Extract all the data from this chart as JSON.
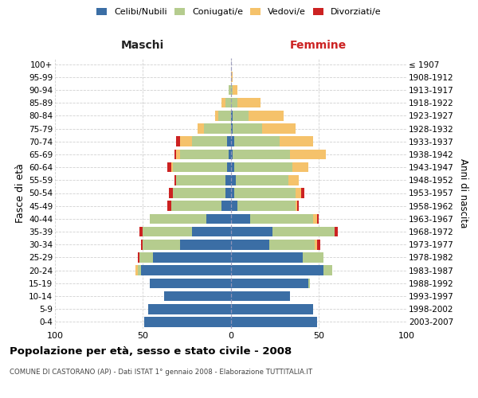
{
  "age_groups": [
    "0-4",
    "5-9",
    "10-14",
    "15-19",
    "20-24",
    "25-29",
    "30-34",
    "35-39",
    "40-44",
    "45-49",
    "50-54",
    "55-59",
    "60-64",
    "65-69",
    "70-74",
    "75-79",
    "80-84",
    "85-89",
    "90-94",
    "95-99",
    "100+"
  ],
  "birth_years": [
    "2003-2007",
    "1998-2002",
    "1993-1997",
    "1988-1992",
    "1983-1987",
    "1978-1982",
    "1973-1977",
    "1968-1972",
    "1963-1967",
    "1958-1962",
    "1953-1957",
    "1948-1952",
    "1943-1947",
    "1938-1942",
    "1933-1937",
    "1928-1932",
    "1923-1927",
    "1918-1922",
    "1913-1917",
    "1908-1912",
    "≤ 1907"
  ],
  "male": {
    "celibi": [
      49,
      47,
      38,
      46,
      51,
      44,
      29,
      22,
      14,
      5,
      3,
      3,
      2,
      1,
      2,
      0,
      0,
      0,
      0,
      0,
      0
    ],
    "coniugati": [
      0,
      0,
      0,
      0,
      2,
      8,
      21,
      28,
      32,
      29,
      30,
      28,
      31,
      28,
      20,
      15,
      7,
      3,
      1,
      0,
      0
    ],
    "vedovi": [
      0,
      0,
      0,
      0,
      1,
      0,
      0,
      0,
      0,
      0,
      0,
      0,
      1,
      2,
      7,
      4,
      2,
      2,
      0,
      0,
      0
    ],
    "divorziati": [
      0,
      0,
      0,
      0,
      0,
      1,
      1,
      2,
      0,
      2,
      2,
      1,
      2,
      1,
      2,
      0,
      0,
      0,
      0,
      0,
      0
    ]
  },
  "female": {
    "nubili": [
      49,
      47,
      34,
      44,
      53,
      41,
      22,
      24,
      11,
      4,
      2,
      3,
      2,
      1,
      2,
      1,
      1,
      0,
      0,
      0,
      0
    ],
    "coniugate": [
      0,
      0,
      0,
      1,
      5,
      12,
      26,
      35,
      36,
      33,
      35,
      30,
      33,
      33,
      26,
      17,
      9,
      4,
      1,
      0,
      0
    ],
    "vedove": [
      0,
      0,
      0,
      0,
      0,
      0,
      1,
      0,
      2,
      1,
      3,
      6,
      9,
      20,
      19,
      19,
      20,
      13,
      3,
      1,
      0
    ],
    "divorziate": [
      0,
      0,
      0,
      0,
      0,
      0,
      2,
      2,
      1,
      1,
      2,
      0,
      0,
      0,
      0,
      0,
      0,
      0,
      0,
      0,
      0
    ]
  },
  "colors": {
    "celibi": "#3b6ea5",
    "coniugati": "#b5cc8e",
    "vedovi": "#f5c26b",
    "divorziati": "#cc2222"
  },
  "title": "Popolazione per età, sesso e stato civile - 2008",
  "subtitle": "COMUNE DI CASTORANO (AP) - Dati ISTAT 1° gennaio 2008 - Elaborazione TUTTITALIA.IT",
  "maschi_label": "Maschi",
  "femmine_label": "Femmine",
  "ylabel_left": "Fasce di età",
  "ylabel_right": "Anni di nascita",
  "xlim": 100,
  "legend_labels": [
    "Celibi/Nubili",
    "Coniugati/e",
    "Vedovi/e",
    "Divorziati/e"
  ],
  "background_color": "#ffffff",
  "grid_color": "#cccccc"
}
